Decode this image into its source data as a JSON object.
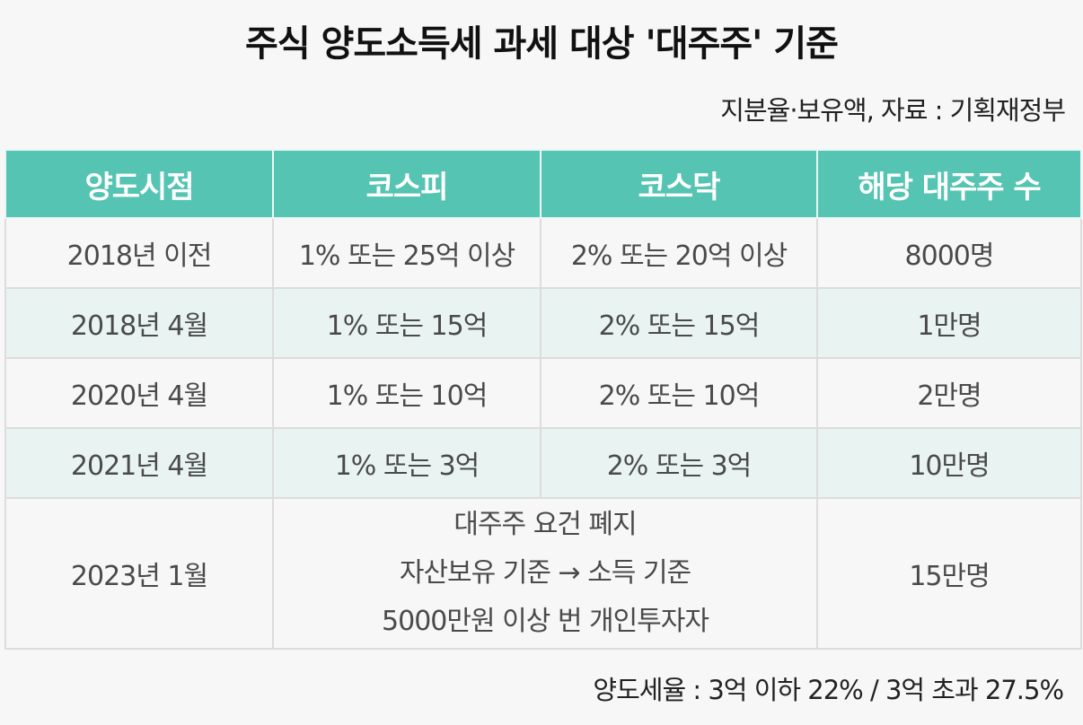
{
  "title": "주식 양도소득세 과세 대상 '대주주' 기준",
  "subtitle": "지분율·보유액, 자료 : 기획재정부",
  "table": {
    "headers": [
      "양도시점",
      "코스피",
      "코스닥",
      "해당 대주주 수"
    ],
    "rows": [
      [
        "2018년 이전",
        "1% 또는 25억 이상",
        "2% 또는 20억 이상",
        "8000명"
      ],
      [
        "2018년 4월",
        "1% 또는 15억",
        "2% 또는 15억",
        "1만명"
      ],
      [
        "2020년 4월",
        "1% 또는 10억",
        "2% 또는 10억",
        "2만명"
      ],
      [
        "2021년 4월",
        "1% 또는 3억",
        "2% 또는 3억",
        "10만명"
      ]
    ],
    "last_row": {
      "period": "2023년 1월",
      "lines": [
        "대주주 요건 폐지",
        "자산보유 기준 → 소득 기준",
        "5000만원 이상 번 개인투자자"
      ],
      "count": "15만명"
    }
  },
  "footer": "양도세율 : 3억 이하 22% / 3억 초과 27.5%",
  "colors": {
    "header_bg": "#55c4b3",
    "alt_row_bg": "#e9f4f2"
  }
}
